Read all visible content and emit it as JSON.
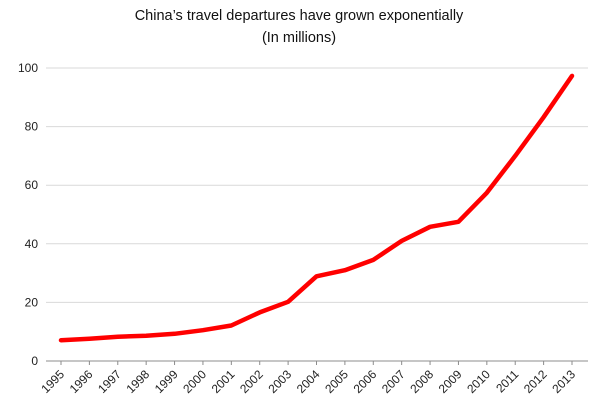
{
  "chart_data": {
    "type": "line",
    "title_lines": [
      "China’s travel departures have grown exponentially",
      "(In millions)"
    ],
    "xlabel": "",
    "ylabel": "",
    "x": [
      "1995",
      "1996",
      "1997",
      "1998",
      "1999",
      "2000",
      "2001",
      "2002",
      "2003",
      "2004",
      "2005",
      "2006",
      "2007",
      "2008",
      "2009",
      "2010",
      "2011",
      "2012",
      "2013"
    ],
    "series": [
      {
        "values": [
          7.1,
          7.6,
          8.3,
          8.6,
          9.3,
          10.5,
          12.1,
          16.6,
          20.2,
          28.9,
          31.0,
          34.5,
          41.0,
          45.8,
          47.5,
          57.4,
          70.0,
          83.2,
          97.3
        ],
        "color": "#ff0000"
      }
    ],
    "ylim": [
      0,
      100
    ],
    "yticks": [
      0,
      20,
      40,
      60,
      80,
      100
    ],
    "grid": "horizontal",
    "legend": "none"
  }
}
